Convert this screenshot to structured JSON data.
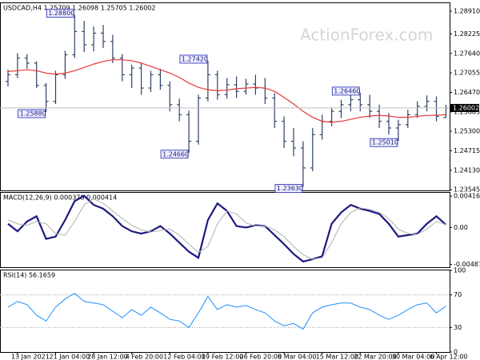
{
  "chart_data": [
    {
      "type": "ohlc",
      "title": "USDCAD,H4 1.25709 1.26098 1.25705 1.26002",
      "watermark": "ActionForex.com",
      "color": "#2f4266",
      "categories": [
        null,
        "13 Jan 2021",
        null,
        null,
        null,
        "21 Jan 04:00",
        null,
        null,
        null,
        "28 Jan 12:00",
        null,
        null,
        null,
        "4 Feb 20:00",
        null,
        null,
        null,
        "12 Feb 04:00",
        null,
        null,
        null,
        "19 Feb 12:00",
        null,
        null,
        null,
        "26 Feb 20:00",
        null,
        null,
        null,
        "8 Mar 04:00",
        null,
        null,
        null,
        "15 Mar 12:00",
        null,
        null,
        null,
        "22 Mar 20:00",
        null,
        null,
        null,
        "30 Mar 04:00",
        null,
        null,
        null,
        "6 Apr 12:00",
        null
      ],
      "open": [
        1.268,
        1.27,
        1.275,
        1.2735,
        1.2668,
        1.262,
        1.27,
        1.276,
        1.283,
        1.279,
        1.2825,
        1.28,
        1.275,
        1.27,
        1.272,
        1.266,
        1.27,
        1.2668,
        1.261,
        1.258,
        1.25,
        1.263,
        1.27,
        1.264,
        1.267,
        1.265,
        1.2672,
        1.266,
        1.263,
        1.256,
        1.25,
        1.248,
        1.242,
        1.252,
        1.256,
        1.259,
        1.261,
        1.2625,
        1.261,
        1.259,
        1.256,
        1.254,
        1.255,
        1.258,
        1.2605,
        1.262,
        1.25709
      ],
      "high": [
        1.2715,
        1.2765,
        1.2762,
        1.274,
        1.2675,
        1.2712,
        1.2772,
        1.288,
        1.2862,
        1.2845,
        1.285,
        1.282,
        1.2762,
        1.273,
        1.2735,
        1.2712,
        1.2718,
        1.268,
        1.2628,
        1.2592,
        1.264,
        1.2742,
        1.2712,
        1.269,
        1.2695,
        1.2688,
        1.27,
        1.269,
        1.2645,
        1.2575,
        1.254,
        1.25,
        1.254,
        1.258,
        1.26,
        1.2625,
        1.264,
        1.2646,
        1.264,
        1.261,
        1.2585,
        1.2565,
        1.2595,
        1.262,
        1.2638,
        1.2635,
        1.26098
      ],
      "low": [
        1.2665,
        1.269,
        1.2718,
        1.266,
        1.2588,
        1.2612,
        1.2688,
        1.275,
        1.2768,
        1.277,
        1.278,
        1.2735,
        1.268,
        1.266,
        1.264,
        1.2648,
        1.2655,
        1.259,
        1.256,
        1.2466,
        1.249,
        1.262,
        1.2625,
        1.2628,
        1.263,
        1.264,
        1.264,
        1.2612,
        1.254,
        1.248,
        1.2455,
        1.2363,
        1.241,
        1.2505,
        1.2545,
        1.257,
        1.259,
        1.259,
        1.257,
        1.254,
        1.252,
        1.2501,
        1.254,
        1.257,
        1.259,
        1.256,
        1.25705
      ],
      "close": [
        1.27,
        1.275,
        1.2735,
        1.2668,
        1.262,
        1.27,
        1.276,
        1.283,
        1.279,
        1.2825,
        1.28,
        1.275,
        1.27,
        1.272,
        1.266,
        1.27,
        1.2668,
        1.261,
        1.258,
        1.25,
        1.263,
        1.27,
        1.264,
        1.267,
        1.265,
        1.2672,
        1.266,
        1.263,
        1.256,
        1.25,
        1.248,
        1.242,
        1.252,
        1.256,
        1.259,
        1.261,
        1.2625,
        1.261,
        1.259,
        1.256,
        1.254,
        1.255,
        1.258,
        1.2605,
        1.262,
        1.2575,
        1.26002
      ],
      "series": [
        {
          "color": "#e8373a",
          "values": [
            1.271,
            1.2712,
            1.2715,
            1.2712,
            1.2705,
            1.2702,
            1.2705,
            1.2712,
            1.2722,
            1.2732,
            1.274,
            1.2745,
            1.2745,
            1.2742,
            1.2735,
            1.2725,
            1.2715,
            1.2705,
            1.2692,
            1.2675,
            1.2662,
            1.2655,
            1.2652,
            1.2654,
            1.2658,
            1.266,
            1.2662,
            1.266,
            1.265,
            1.2632,
            1.2612,
            1.259,
            1.2572,
            1.256,
            1.2557,
            1.256,
            1.2566,
            1.2572,
            1.2576,
            1.2578,
            1.2576,
            1.2572,
            1.2572,
            1.2575,
            1.2578,
            1.2578,
            1.258
          ]
        }
      ],
      "current_price": {
        "value": 1.26002,
        "label": "1.26002"
      },
      "annotations": [
        {
          "value": 1.288,
          "label": "1.28800"
        },
        {
          "value": 1.2588,
          "label": "1.25880"
        },
        {
          "value": 1.2742,
          "label": "1.27420"
        },
        {
          "value": 1.2466,
          "label": "1.24660"
        },
        {
          "value": 1.2363,
          "label": "1.23630"
        },
        {
          "value": 1.2646,
          "label": "1.26460"
        },
        {
          "value": 1.2501,
          "label": "1.25010"
        }
      ],
      "ylim": [
        1.235,
        1.2915
      ],
      "yticks": [
        {
          "value": 1.2891,
          "label": "1.28910"
        },
        {
          "value": 1.28225,
          "label": "1.28225"
        },
        {
          "value": 1.2764,
          "label": "1.27640"
        },
        {
          "value": 1.27055,
          "label": "1.27055"
        },
        {
          "value": 1.2647,
          "label": "1.26470"
        },
        {
          "value": 1.25885,
          "label": "1.25885"
        },
        {
          "value": 1.253,
          "label": "1.25300"
        },
        {
          "value": 1.24715,
          "label": "1.24715"
        },
        {
          "value": 1.2413,
          "label": "1.24130"
        },
        {
          "value": 1.23545,
          "label": "1.23545"
        }
      ]
    },
    {
      "type": "line",
      "title": "MACD(12,26,9) 0.000378 0.000414",
      "series": [
        {
          "color": "#1a1a80",
          "values": [
            0.0005,
            -0.0005,
            0.0008,
            0.0015,
            -0.0015,
            -0.0012,
            0.001,
            0.0035,
            0.0042,
            0.003,
            0.0025,
            0.0015,
            0.0002,
            -0.0005,
            -0.0008,
            -0.0005,
            0.0002,
            -0.0008,
            -0.002,
            -0.0032,
            -0.004,
            0.001,
            0.0032,
            0.0022,
            0.0002,
            0.0,
            0.0003,
            0.0002,
            -0.001,
            -0.0022,
            -0.0035,
            -0.0045,
            -0.0042,
            -0.0038,
            0.0005,
            0.002,
            0.003,
            0.0025,
            0.0022,
            0.0018,
            0.0005,
            -0.0012,
            -0.001,
            -0.0008,
            0.0005,
            0.0015,
            0.000378
          ]
        },
        {
          "color": "#b0b0b0",
          "values": [
            0.001,
            0.0005,
            0.0003,
            0.0008,
            0.0005,
            -0.0008,
            -0.001,
            0.0008,
            0.003,
            0.0038,
            0.0032,
            0.0022,
            0.0012,
            0.0003,
            -0.0003,
            -0.0006,
            -0.0004,
            -0.0002,
            -0.001,
            -0.0022,
            -0.0033,
            -0.0025,
            0.0005,
            0.0022,
            0.0018,
            0.0006,
            0.0002,
            0.0002,
            -0.0003,
            -0.0012,
            -0.0025,
            -0.0036,
            -0.0042,
            -0.004,
            -0.002,
            0.0005,
            0.002,
            0.0026,
            0.0024,
            0.002,
            0.0012,
            -0.0002,
            -0.0008,
            -0.0009,
            -0.0002,
            0.0008,
            0.000414
          ]
        }
      ],
      "ylim": [
        -0.00525,
        0.0046
      ],
      "yticks": [
        {
          "value": 0.00416,
          "label": "0.004160"
        },
        {
          "value": 0,
          "label": "0.00"
        },
        {
          "value": -0.004871,
          "label": "-0.004871"
        }
      ]
    },
    {
      "type": "line",
      "title": "RSI(14) 56.1659",
      "series": [
        {
          "color": "#1e90ff",
          "values": [
            55,
            62,
            58,
            45,
            38,
            55,
            65,
            72,
            62,
            60,
            58,
            50,
            42,
            52,
            45,
            55,
            48,
            40,
            38,
            30,
            48,
            68,
            52,
            58,
            55,
            57,
            52,
            48,
            38,
            32,
            35,
            28,
            48,
            55,
            58,
            60,
            60,
            55,
            52,
            45,
            40,
            45,
            52,
            58,
            60,
            48,
            56.1659
          ]
        }
      ],
      "ylim": [
        0,
        100
      ],
      "yticks": [
        100,
        70,
        30,
        0
      ]
    }
  ]
}
